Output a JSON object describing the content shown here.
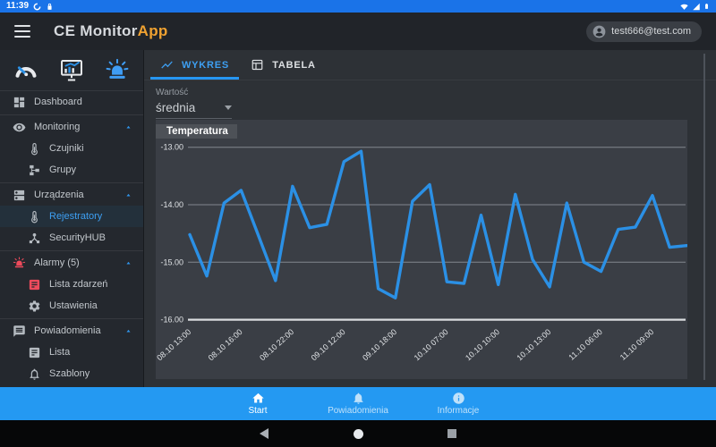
{
  "status_bar": {
    "time": "11:39",
    "icons_left": [
      "data-saver",
      "lock"
    ],
    "icons_right": [
      "wifi",
      "cell-signal",
      "battery"
    ]
  },
  "app_bar": {
    "title_primary": "CE Monitor",
    "title_accent": "App",
    "account_email": "test666@test.com"
  },
  "sidebar": {
    "quick_icons": [
      "gauge",
      "monitor-chart",
      "siren"
    ],
    "dividers_after": [
      0,
      3,
      6,
      9
    ],
    "items": [
      {
        "label": "Dashboard",
        "icon": "dashboard",
        "level": 0
      },
      {
        "label": "Monitoring",
        "icon": "eye",
        "level": 0,
        "expanded": true
      },
      {
        "label": "Czujniki",
        "icon": "thermometer",
        "level": 1
      },
      {
        "label": "Grupy",
        "icon": "group",
        "level": 1
      },
      {
        "label": "Urządzenia",
        "icon": "devices",
        "level": 0,
        "expanded": true
      },
      {
        "label": "Rejestratory",
        "icon": "thermometer",
        "level": 1,
        "active": true
      },
      {
        "label": "SecurityHUB",
        "icon": "hub",
        "level": 1
      },
      {
        "label": "Alarmy (5)",
        "icon": "siren-red",
        "level": 0,
        "expanded": true,
        "red": true
      },
      {
        "label": "Lista zdarzeń",
        "icon": "event-list",
        "level": 1,
        "red": true
      },
      {
        "label": "Ustawienia",
        "icon": "gear",
        "level": 1
      },
      {
        "label": "Powiadomienia",
        "icon": "message",
        "level": 0,
        "expanded": true
      },
      {
        "label": "Lista",
        "icon": "event-list",
        "level": 1
      },
      {
        "label": "Szablony",
        "icon": "bell",
        "level": 1
      }
    ]
  },
  "tabs": [
    {
      "label": "WYKRES",
      "icon": "chart-line",
      "active": true
    },
    {
      "label": "TABELA",
      "icon": "table",
      "active": false
    }
  ],
  "filter": {
    "label": "Wartość",
    "value": "średnia"
  },
  "chart_data": {
    "type": "line",
    "title": "Temperatura",
    "series": [
      {
        "name": "Temperatura",
        "values": [
          -14.52,
          -15.24,
          -13.97,
          -13.75,
          -14.53,
          -15.32,
          -13.68,
          -14.4,
          -14.34,
          -13.25,
          -13.07,
          -15.46,
          -15.62,
          -13.94,
          -13.65,
          -15.34,
          -15.37,
          -14.18,
          -15.39,
          -13.82,
          -14.95,
          -15.43,
          -13.97,
          -15.0,
          -15.16,
          -14.43,
          -14.39,
          -13.84,
          -14.74,
          -14.71
        ]
      }
    ],
    "x_tick_labels": [
      "08.10 13:00",
      "08.10 16:00",
      "08.10 22:00",
      "09.10 12:00",
      "09.10 18:00",
      "10.10 07:00",
      "10.10 10:00",
      "10.10 13:00",
      "11.10 06:00",
      "11.10 09:00"
    ],
    "x_tick_every": 3,
    "y_ticks": [
      -13,
      -14,
      -15,
      -16
    ],
    "y_tick_labels": [
      "-13.00",
      "-14.00",
      "-15.00",
      "-16.00"
    ],
    "ylim": [
      -16.35,
      -12.55
    ],
    "grid": true,
    "legend_position": "top-left",
    "line_color": "#2b90e5"
  },
  "bottom_nav": {
    "items": [
      {
        "label": "Start",
        "icon": "home",
        "active": true
      },
      {
        "label": "Powiadomienia",
        "icon": "bell-filled",
        "active": false
      },
      {
        "label": "Informacje",
        "icon": "info",
        "active": false
      }
    ]
  },
  "system_bar": {
    "buttons": [
      "back",
      "home",
      "recents"
    ]
  },
  "colors": {
    "statusbar_blue": "#1a73e8",
    "bottomnav_blue": "#2499f2",
    "accent_blue": "#2b90e5",
    "alarm_red": "#ee4b5c",
    "title_accent_orange": "#f0a231",
    "panel_bg": "#3a3e45",
    "sidebar_bg": "#24282e"
  }
}
